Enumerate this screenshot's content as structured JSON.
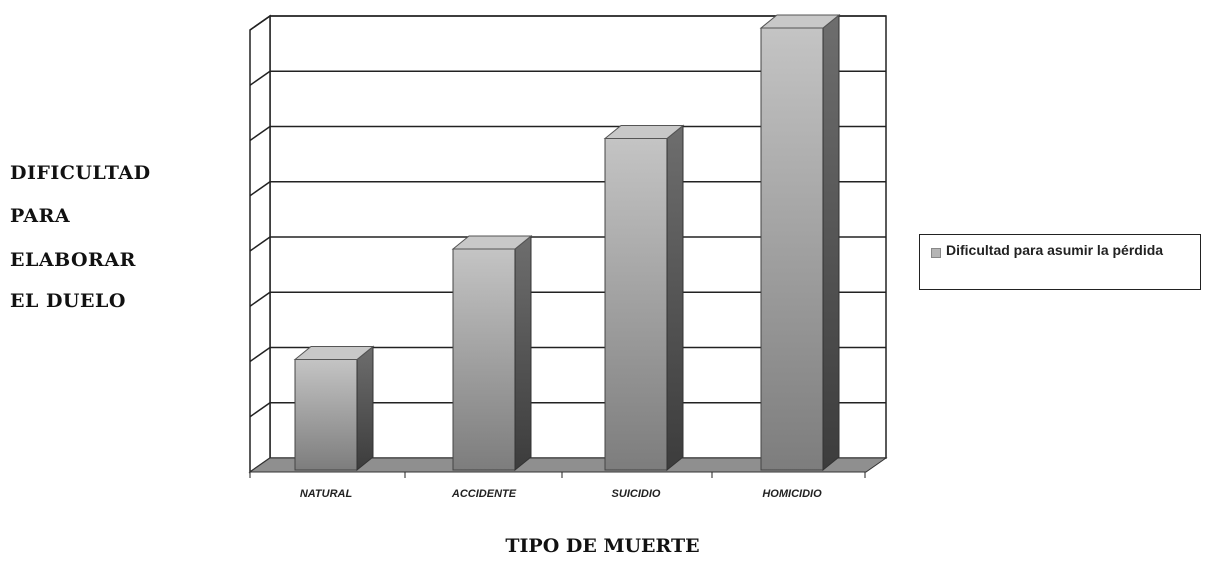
{
  "chart_data": {
    "type": "bar",
    "categories": [
      "NATURAL",
      "ACCIDENTE",
      "SUICIDIO",
      "HOMICIDIO"
    ],
    "series": [
      {
        "name": "Dificultad para asumir la pérdida",
        "values": [
          2,
          4,
          6,
          8
        ]
      }
    ],
    "ylabel_lines": [
      "DIFICULTAD",
      "PARA",
      "ELABORAR",
      "EL DUELO"
    ],
    "xlabel": "TIPO DE MUERTE",
    "ylim": [
      0,
      8
    ],
    "grid": true,
    "legend_position": "right",
    "colors": {
      "bar_front": "#9c9c9c",
      "bar_side": "#555555",
      "bar_top": "#c8c8c8",
      "floor": "#8f8f8f"
    }
  }
}
